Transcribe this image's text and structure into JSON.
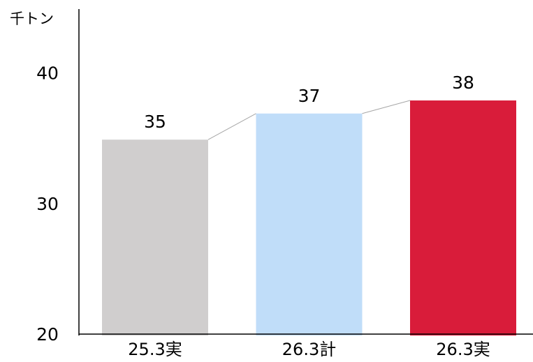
{
  "chart_data": {
    "type": "bar",
    "y_label": "千トン",
    "categories": [
      "25.3実",
      "26.3計",
      "26.3実"
    ],
    "values": [
      35,
      37,
      38
    ],
    "colors": [
      "#d0cece",
      "#c0ddf9",
      "#d91c3a"
    ],
    "ylim": [
      20,
      45
    ],
    "yticks": [
      20,
      30,
      40
    ],
    "grid": false,
    "connectors": true
  }
}
